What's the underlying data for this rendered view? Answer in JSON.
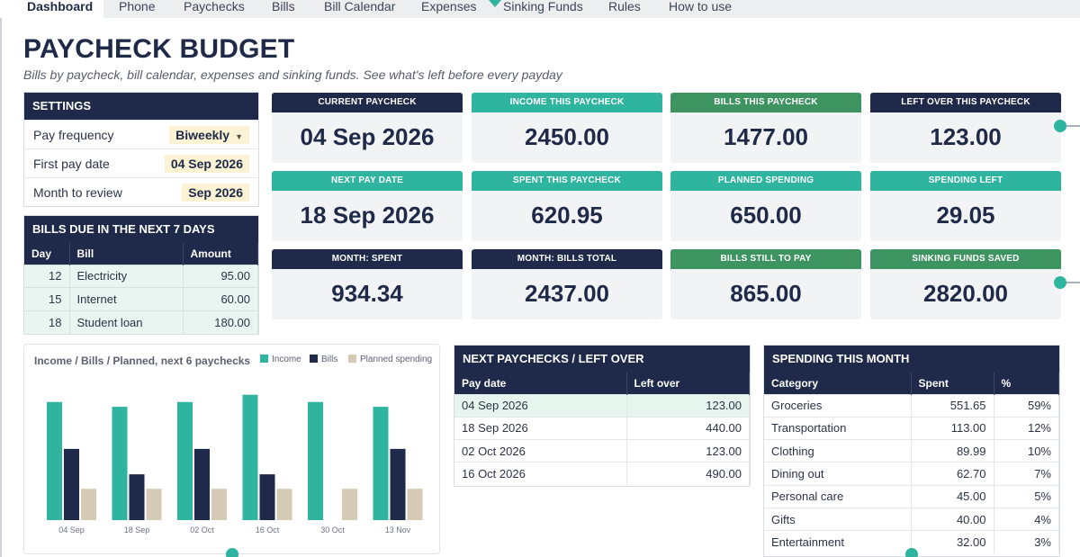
{
  "tabs": [
    {
      "label": "Dashboard",
      "active": true
    },
    {
      "label": "Phone",
      "active": false
    },
    {
      "label": "Paychecks",
      "active": false
    },
    {
      "label": "Bills",
      "active": false
    },
    {
      "label": "Bill Calendar",
      "active": false
    },
    {
      "label": "Expenses",
      "active": false
    },
    {
      "label": "Sinking Funds",
      "active": false
    },
    {
      "label": "Rules",
      "active": false
    },
    {
      "label": "How to use",
      "active": false
    }
  ],
  "header": {
    "title": "PAYCHECK BUDGET",
    "subtitle": "Bills by paycheck, bill calendar, expenses and sinking funds. See what's left before every payday"
  },
  "settings": {
    "heading": "SETTINGS",
    "pay_frequency": {
      "label": "Pay frequency",
      "value": "Biweekly"
    },
    "first_pay_date": {
      "label": "First pay date",
      "value": "04 Sep 2026"
    },
    "month_to_review": {
      "label": "Month to review",
      "value": "Sep 2026"
    }
  },
  "bills_due": {
    "heading": "BILLS DUE IN THE NEXT 7 DAYS",
    "columns": [
      "Day",
      "Bill",
      "Amount"
    ],
    "rows": [
      [
        "12",
        "Electricity",
        "95.00"
      ],
      [
        "15",
        "Internet",
        "60.00"
      ],
      [
        "18",
        "Student loan",
        "180.00"
      ]
    ]
  },
  "cards": [
    {
      "label": "CURRENT PAYCHECK",
      "value": "04 Sep 2026",
      "color": "#1f2a4a"
    },
    {
      "label": "INCOME THIS PAYCHECK",
      "value": "2450.00",
      "color": "#2fb4a0"
    },
    {
      "label": "BILLS THIS PAYCHECK",
      "value": "1477.00",
      "color": "#3e9461"
    },
    {
      "label": "LEFT OVER THIS PAYCHECK",
      "value": "123.00",
      "color": "#1f2a4a"
    },
    {
      "label": "NEXT PAY DATE",
      "value": "18 Sep 2026",
      "color": "#2fb4a0"
    },
    {
      "label": "SPENT THIS PAYCHECK",
      "value": "620.95",
      "color": "#2fb4a0"
    },
    {
      "label": "PLANNED SPENDING",
      "value": "650.00",
      "color": "#2fb4a0"
    },
    {
      "label": "SPENDING LEFT",
      "value": "29.05",
      "color": "#2fb4a0"
    },
    {
      "label": "MONTH: SPENT",
      "value": "934.34",
      "color": "#1f2a4a"
    },
    {
      "label": "MONTH: BILLS TOTAL",
      "value": "2437.00",
      "color": "#1f2a4a"
    },
    {
      "label": "BILLS STILL TO PAY",
      "value": "865.00",
      "color": "#3e9461"
    },
    {
      "label": "SINKING FUNDS SAVED",
      "value": "2820.00",
      "color": "#3e9461"
    }
  ],
  "chart_data": {
    "type": "bar",
    "title": "Income / Bills / Planned, next 6 paychecks",
    "categories": [
      "04 Sep",
      "18 Sep",
      "02 Oct",
      "16 Oct",
      "30 Oct",
      "13 Nov"
    ],
    "series": [
      {
        "name": "Income",
        "values": [
          2450,
          2350,
          2450,
          2600,
          2450,
          2350
        ],
        "color": "#2fb4a0"
      },
      {
        "name": "Bills",
        "values": [
          1477,
          950,
          1477,
          950,
          0,
          1477
        ],
        "color": "#1f2a4a"
      },
      {
        "name": "Planned spending",
        "values": [
          650,
          650,
          650,
          650,
          650,
          650
        ],
        "color": "#d5cab6"
      }
    ],
    "ylim": [
      0,
      2800
    ],
    "grid": false,
    "legend": "top-right"
  },
  "next_paychecks": {
    "heading": "NEXT PAYCHECKS / LEFT OVER",
    "columns": [
      "Pay date",
      "Left over"
    ],
    "rows": [
      [
        "04 Sep 2026",
        "123.00"
      ],
      [
        "18 Sep 2026",
        "440.00"
      ],
      [
        "02 Oct 2026",
        "123.00"
      ],
      [
        "16 Oct 2026",
        "490.00"
      ]
    ]
  },
  "spending": {
    "heading": "SPENDING THIS MONTH",
    "columns": [
      "Category",
      "Spent",
      "%"
    ],
    "rows": [
      [
        "Groceries",
        "551.65",
        "59%"
      ],
      [
        "Transportation",
        "113.00",
        "12%"
      ],
      [
        "Clothing",
        "89.99",
        "10%"
      ],
      [
        "Dining out",
        "62.70",
        "7%"
      ],
      [
        "Personal care",
        "45.00",
        "5%"
      ],
      [
        "Gifts",
        "40.00",
        "4%"
      ],
      [
        "Entertainment",
        "32.00",
        "3%"
      ]
    ]
  }
}
